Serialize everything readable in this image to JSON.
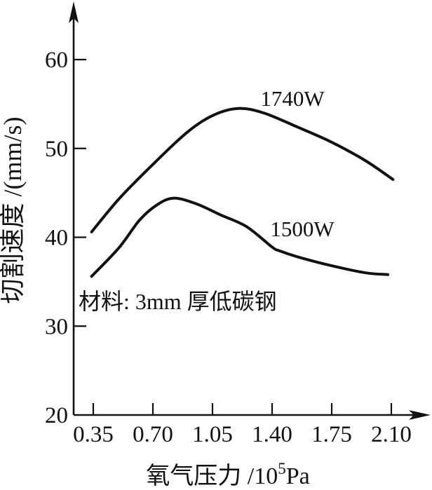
{
  "chart_data": {
    "type": "line",
    "title": "",
    "x_axis": {
      "title_prefix": "氧气压力 /10",
      "title_sup": "5",
      "title_suffix": "Pa",
      "range": [
        0.35,
        2.1
      ],
      "ticks": [
        "0.35",
        "0.70",
        "1.05",
        "1.40",
        "1.75",
        "2.10"
      ]
    },
    "y_axis": {
      "title": "切割速度 /(mm/s)",
      "range": [
        20,
        60
      ],
      "ticks": [
        "60",
        "50",
        "40",
        "30",
        "20"
      ]
    },
    "annotation": "材料: 3mm 厚低碳钢",
    "legend_position": "inline-labels",
    "grid": false,
    "series": [
      {
        "name": "1740W",
        "points": [
          [
            0.34,
            40.6
          ],
          [
            0.5,
            44.3
          ],
          [
            0.7,
            48.2
          ],
          [
            0.9,
            51.8
          ],
          [
            1.05,
            53.7
          ],
          [
            1.2,
            54.5
          ],
          [
            1.35,
            54.0
          ],
          [
            1.55,
            52.4
          ],
          [
            1.75,
            50.7
          ],
          [
            1.95,
            48.6
          ],
          [
            2.11,
            46.5
          ]
        ]
      },
      {
        "name": "1500W",
        "points": [
          [
            0.34,
            35.6
          ],
          [
            0.5,
            38.8
          ],
          [
            0.62,
            41.9
          ],
          [
            0.72,
            43.6
          ],
          [
            0.82,
            44.4
          ],
          [
            0.95,
            43.8
          ],
          [
            1.1,
            42.5
          ],
          [
            1.25,
            41.2
          ],
          [
            1.4,
            38.9
          ],
          [
            1.44,
            38.5
          ],
          [
            1.55,
            37.8
          ],
          [
            1.75,
            36.8
          ],
          [
            1.95,
            36.0
          ],
          [
            2.08,
            35.8
          ]
        ]
      }
    ],
    "colors": {
      "ink": "#111111",
      "background": "#ffffff"
    }
  }
}
